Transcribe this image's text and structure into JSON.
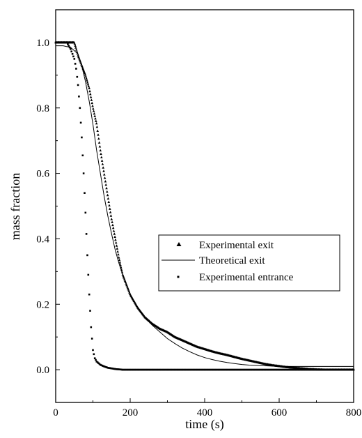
{
  "chart_data": {
    "type": "scatter",
    "xlabel": "time (s)",
    "ylabel": "mass fraction",
    "xlim": [
      0,
      800
    ],
    "ylim": [
      -0.1,
      1.1
    ],
    "x_ticks": [
      0,
      200,
      400,
      600,
      800
    ],
    "y_ticks": [
      0.0,
      0.2,
      0.4,
      0.6,
      0.8,
      1.0
    ],
    "x_tick_labels": [
      "0",
      "200",
      "400",
      "600",
      "800"
    ],
    "y_tick_labels": [
      "0.0",
      "0.2",
      "0.4",
      "0.6",
      "0.8",
      "1.0"
    ],
    "grid": false,
    "legend_position": "center-right",
    "series": [
      {
        "name": "Experimental exit",
        "marker": "triangle",
        "color": "#000000",
        "x": [
          0,
          20,
          40,
          50,
          60,
          70,
          80,
          90,
          100,
          110,
          120,
          130,
          140,
          150,
          160,
          170,
          180,
          190,
          200,
          220,
          240,
          260,
          280,
          300,
          320,
          340,
          360,
          380,
          400,
          420,
          440,
          460,
          480,
          500,
          520,
          540,
          560,
          580,
          600,
          620,
          640,
          660,
          680,
          700,
          720,
          740,
          760,
          780,
          800
        ],
        "y": [
          1.0,
          1.0,
          1.0,
          1.0,
          0.96,
          0.93,
          0.9,
          0.86,
          0.8,
          0.75,
          0.67,
          0.6,
          0.53,
          0.46,
          0.4,
          0.34,
          0.29,
          0.26,
          0.23,
          0.19,
          0.16,
          0.14,
          0.125,
          0.115,
          0.1,
          0.09,
          0.08,
          0.07,
          0.063,
          0.056,
          0.05,
          0.045,
          0.039,
          0.033,
          0.028,
          0.023,
          0.018,
          0.014,
          0.011,
          0.008,
          0.006,
          0.004,
          0.002,
          0.001,
          0.0,
          0.0,
          0.0,
          0.0,
          0.0
        ]
      },
      {
        "name": "Theoretical exit",
        "marker": "line",
        "color": "#000000",
        "x": [
          0,
          20,
          40,
          60,
          70,
          80,
          90,
          100,
          110,
          120,
          130,
          140,
          150,
          160,
          170,
          180,
          190,
          200,
          220,
          240,
          260,
          280,
          300,
          320,
          340,
          360,
          380,
          400,
          420,
          440,
          460,
          480,
          500,
          520,
          540,
          560,
          580,
          600,
          640,
          700,
          800
        ],
        "y": [
          0.99,
          0.99,
          0.985,
          0.965,
          0.93,
          0.88,
          0.82,
          0.75,
          0.67,
          0.6,
          0.53,
          0.47,
          0.415,
          0.365,
          0.325,
          0.29,
          0.26,
          0.23,
          0.19,
          0.16,
          0.135,
          0.115,
          0.095,
          0.08,
          0.066,
          0.055,
          0.045,
          0.037,
          0.031,
          0.026,
          0.022,
          0.019,
          0.016,
          0.014,
          0.013,
          0.012,
          0.011,
          0.01,
          0.01,
          0.01,
          0.01
        ]
      },
      {
        "name": "Experimental entrance",
        "marker": "square",
        "color": "#000000",
        "x": [
          0,
          10,
          20,
          30,
          40,
          50,
          55,
          60,
          65,
          70,
          75,
          80,
          85,
          90,
          95,
          100,
          105,
          110,
          115,
          120,
          130,
          140,
          150,
          160,
          170,
          180,
          200,
          250,
          300,
          350,
          400,
          450,
          500,
          550,
          600,
          650,
          700,
          750,
          800
        ],
        "y": [
          1.0,
          1.0,
          1.0,
          1.0,
          0.98,
          0.95,
          0.92,
          0.87,
          0.8,
          0.71,
          0.6,
          0.48,
          0.35,
          0.23,
          0.13,
          0.06,
          0.035,
          0.025,
          0.02,
          0.015,
          0.01,
          0.006,
          0.004,
          0.002,
          0.001,
          0.0,
          0.0,
          0.0,
          0.0,
          0.0,
          0.0,
          0.0,
          0.0,
          0.0,
          0.0,
          0.0,
          0.0,
          0.0,
          0.0
        ]
      }
    ]
  }
}
